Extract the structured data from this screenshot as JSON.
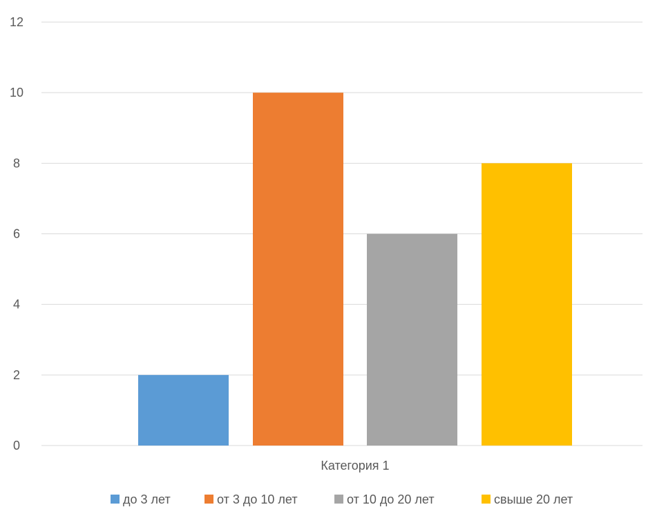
{
  "chart_data": {
    "type": "bar",
    "title": "",
    "xlabel": "",
    "ylabel": "",
    "categories": [
      "Категория 1"
    ],
    "series": [
      {
        "name": "до 3 лет",
        "values": [
          2
        ],
        "color": "#5b9bd5"
      },
      {
        "name": "от 3 до 10 лет",
        "values": [
          10
        ],
        "color": "#ed7d31"
      },
      {
        "name": "от 10 до 20 лет",
        "values": [
          6
        ],
        "color": "#a5a5a5"
      },
      {
        "name": "свыше 20 лет",
        "values": [
          8
        ],
        "color": "#ffc000"
      }
    ],
    "ylim": [
      0,
      12
    ],
    "yticks": [
      0,
      2,
      4,
      6,
      8,
      10,
      12
    ],
    "grid": true,
    "legend_position": "bottom"
  }
}
